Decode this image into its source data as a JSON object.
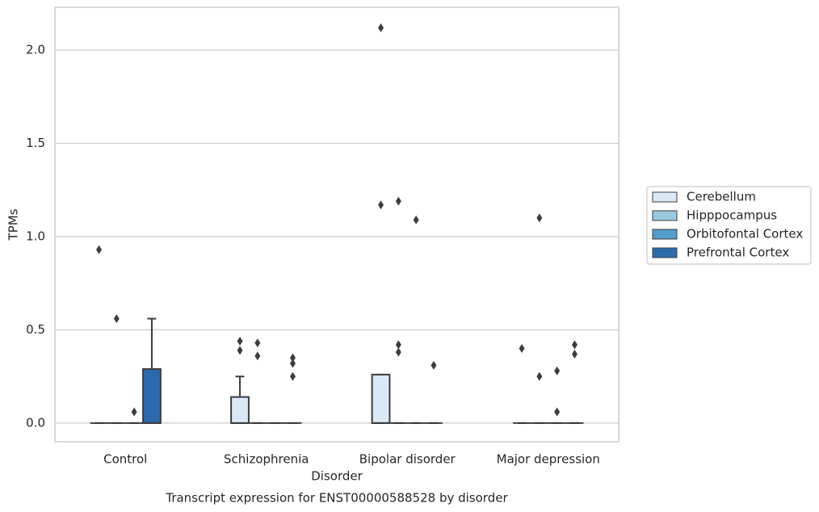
{
  "chart_data": {
    "type": "box",
    "caption": "Transcript expression for ENST00000588528 by disorder",
    "xlabel": "Disorder",
    "ylabel": "TPMs",
    "categories": [
      "Control",
      "Schizophrenia",
      "Bipolar disorder",
      "Major depression"
    ],
    "ylim": [
      -0.1,
      2.23
    ],
    "yticks": [
      {
        "value": 0,
        "label": "0.0"
      },
      0.5,
      {
        "value": 1,
        "label": "1.0"
      },
      1.5,
      {
        "value": 2,
        "label": "2.0"
      }
    ],
    "grid": true,
    "legend": "right",
    "series": [
      {
        "name": "Cerebellum",
        "color": "#dbe9f6",
        "boxes": [
          {
            "whislo": 0,
            "q1": 0,
            "med": 0,
            "q3": 0,
            "whishi": 0,
            "fliers": [
              0.93
            ]
          },
          {
            "whislo": 0,
            "q1": 0,
            "med": 0,
            "q3": 0.14,
            "whishi": 0.25,
            "fliers": [
              0.44,
              0.39
            ]
          },
          {
            "whislo": 0,
            "q1": 0,
            "med": 0,
            "q3": 0.26,
            "whishi": 0.26,
            "fliers": [
              2.12,
              1.17
            ]
          },
          {
            "whislo": 0,
            "q1": 0,
            "med": 0,
            "q3": 0,
            "whishi": 0,
            "fliers": [
              0.4
            ]
          }
        ]
      },
      {
        "name": "Hipppocampus",
        "color": "#9ac8e0",
        "boxes": [
          {
            "whislo": 0,
            "q1": 0,
            "med": 0,
            "q3": 0,
            "whishi": 0,
            "fliers": [
              0.56
            ]
          },
          {
            "whislo": 0,
            "q1": 0,
            "med": 0,
            "q3": 0,
            "whishi": 0,
            "fliers": [
              0.43,
              0.36
            ]
          },
          {
            "whislo": 0,
            "q1": 0,
            "med": 0,
            "q3": 0,
            "whishi": 0,
            "fliers": [
              1.19,
              0.42,
              0.38
            ]
          },
          {
            "whislo": 0,
            "q1": 0,
            "med": 0,
            "q3": 0,
            "whishi": 0,
            "fliers": [
              1.1,
              0.25
            ]
          }
        ]
      },
      {
        "name": "Orbitofontal Cortex",
        "color": "#529dcc",
        "boxes": [
          {
            "whislo": 0,
            "q1": 0,
            "med": 0,
            "q3": 0,
            "whishi": 0,
            "fliers": [
              0.06
            ]
          },
          {
            "whislo": 0,
            "q1": 0,
            "med": 0,
            "q3": 0,
            "whishi": 0,
            "fliers": []
          },
          {
            "whislo": 0,
            "q1": 0,
            "med": 0,
            "q3": 0,
            "whishi": 0,
            "fliers": [
              1.09
            ]
          },
          {
            "whislo": 0,
            "q1": 0,
            "med": 0,
            "q3": 0,
            "whishi": 0,
            "fliers": [
              0.28,
              0.06
            ]
          }
        ]
      },
      {
        "name": "Prefrontal Cortex",
        "color": "#2a6aad",
        "boxes": [
          {
            "whislo": 0,
            "q1": 0,
            "med": 0,
            "q3": 0.29,
            "whishi": 0.56,
            "fliers": []
          },
          {
            "whislo": 0,
            "q1": 0,
            "med": 0,
            "q3": 0,
            "whishi": 0,
            "fliers": [
              0.35,
              0.32,
              0.25
            ]
          },
          {
            "whislo": 0,
            "q1": 0,
            "med": 0,
            "q3": 0,
            "whishi": 0,
            "fliers": [
              0.31
            ]
          },
          {
            "whislo": 0,
            "q1": 0,
            "med": 0,
            "q3": 0,
            "whishi": 0,
            "fliers": [
              0.42,
              0.37
            ]
          }
        ]
      }
    ]
  }
}
